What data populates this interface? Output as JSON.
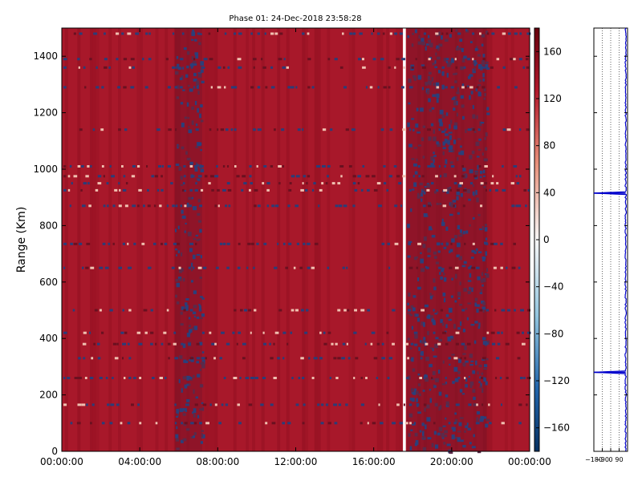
{
  "chart_data": [
    {
      "type": "heatmap",
      "title": "Phase 01: 24-Dec-2018 23:58:28",
      "ylabel": "Range (Km)",
      "xlabel": "",
      "x_ticks": [
        "00:00:00",
        "04:00:00",
        "08:00:00",
        "12:00:00",
        "16:00:00",
        "20:00:00",
        "00:00:00"
      ],
      "x_range_hours": [
        0,
        24
      ],
      "y_ticks": [
        0,
        200,
        400,
        600,
        800,
        1000,
        1200,
        1400
      ],
      "ylim": [
        0,
        1500
      ],
      "colorbar": {
        "range": [
          -180,
          180
        ],
        "ticks": [
          160,
          120,
          80,
          40,
          0,
          -40,
          -80,
          -120,
          -160
        ],
        "colormap": "RdBu",
        "colors": {
          "high": "#a50f15",
          "mid": "#f7f7f7",
          "low": "#08306b"
        }
      },
      "dominant_value": 160,
      "features": [
        {
          "label": "dark band (low values)",
          "x_start_hours": 5.8,
          "x_end_hours": 7.2
        },
        {
          "label": "data gap (white)",
          "x_start_hours": 17.5,
          "x_end_hours": 17.65
        },
        {
          "label": "dark band (low values)",
          "x_start_hours": 17.7,
          "x_end_hours": 21.8
        }
      ]
    },
    {
      "type": "line",
      "x_ticks": [
        "-180",
        "-90",
        "0",
        "90"
      ],
      "xlim": [
        -180,
        180
      ],
      "ylim": [
        0,
        1500
      ],
      "grid": true,
      "line_color": "#0000cc",
      "description_points": [
        {
          "range": 280,
          "spike_to": -180
        },
        {
          "range": 915,
          "spike_to": -180
        }
      ],
      "baseline_value": 160
    }
  ]
}
